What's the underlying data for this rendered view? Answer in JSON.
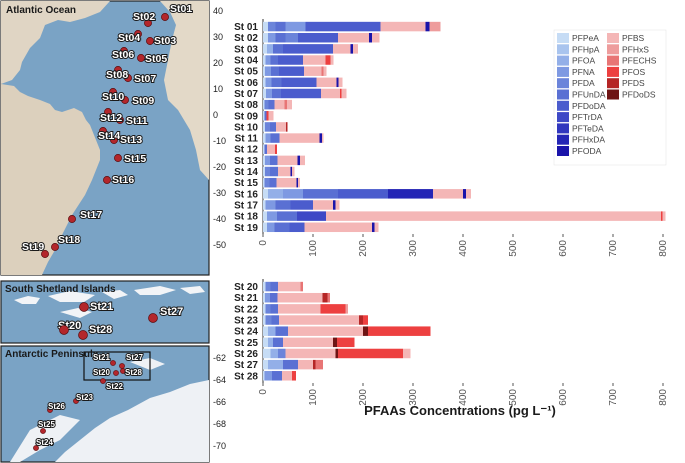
{
  "maps": {
    "atlantic": {
      "title": "Atlantic Ocean",
      "lat_labels": [
        "40",
        "30",
        "20",
        "10",
        "0",
        "-10",
        "-20",
        "-30",
        "-40",
        "-50"
      ],
      "stations": [
        "St01",
        "St02",
        "St03",
        "St04",
        "St05",
        "St06",
        "St07",
        "St08",
        "St09",
        "St10",
        "St11",
        "St12",
        "St13",
        "St14",
        "St15",
        "St16",
        "St17",
        "St18",
        "St19"
      ]
    },
    "shetland": {
      "title": "South Shetland Islands",
      "stations": [
        "St21",
        "St20",
        "St28",
        "St27"
      ]
    },
    "peninsula": {
      "title": "Antarctic Peninsula",
      "lat_labels": [
        "-62",
        "-64",
        "-66",
        "-68",
        "-70"
      ],
      "stations": [
        "St21",
        "St27",
        "St20",
        "St28",
        "St22",
        "St23",
        "St26",
        "St25",
        "St24"
      ]
    }
  },
  "chart_data": {
    "type": "bar",
    "orientation": "horizontal",
    "stacked": true,
    "xlabel": "PFAAs Concentrations (pg L⁻¹)",
    "xlim": [
      0,
      800
    ],
    "xticks": [
      "0",
      "100",
      "200",
      "300",
      "400",
      "500",
      "600",
      "700",
      "800"
    ],
    "legend": [
      {
        "name": "PFPeA",
        "color": "#c6dcf5"
      },
      {
        "name": "PFHpA",
        "color": "#a9c4ee"
      },
      {
        "name": "PFOA",
        "color": "#93afe8"
      },
      {
        "name": "PFNA",
        "color": "#7e99e2"
      },
      {
        "name": "PFDA",
        "color": "#6b84da"
      },
      {
        "name": "PFUnDA",
        "color": "#5a70d3"
      },
      {
        "name": "PFDoDA",
        "color": "#4b5ccd"
      },
      {
        "name": "PFTrDA",
        "color": "#3d48c6"
      },
      {
        "name": "PFTeDA",
        "color": "#3036be"
      },
      {
        "name": "PFHxDA",
        "color": "#2425b5"
      },
      {
        "name": "PFODA",
        "color": "#1a14aa"
      },
      {
        "name": "PFBS",
        "color": "#f4b6b6"
      },
      {
        "name": "PFHxS",
        "color": "#ee9c9c"
      },
      {
        "name": "PFECHS",
        "color": "#e87575"
      },
      {
        "name": "PFOS",
        "color": "#ed4040"
      },
      {
        "name": "PFDS",
        "color": "#b52626"
      },
      {
        "name": "PFDoDS",
        "color": "#6e1414"
      }
    ],
    "panels": [
      {
        "categories": [
          "St 01",
          "St 02",
          "St 03",
          "St 04",
          "St 05",
          "St 06",
          "St 07",
          "St 08",
          "St 09",
          "St 10",
          "St 11",
          "St 12",
          "St 13",
          "St 14",
          "St 15",
          "St 16",
          "St 17",
          "St 18",
          "St 19"
        ],
        "segments": [
          [
            [
              10,
              1
            ],
            [
              15,
              5
            ],
            [
              20,
              6
            ],
            [
              40,
              4
            ],
            [
              150,
              7
            ],
            [
              90,
              12
            ],
            [
              8,
              11
            ],
            [
              22,
              13
            ]
          ],
          [
            [
              10,
              1
            ],
            [
              15,
              4
            ],
            [
              20,
              6
            ],
            [
              25,
              5
            ],
            [
              80,
              7
            ],
            [
              62,
              12
            ],
            [
              6,
              11
            ],
            [
              15,
              12
            ]
          ],
          [
            [
              8,
              1
            ],
            [
              12,
              3
            ],
            [
              20,
              6
            ],
            [
              100,
              7
            ],
            [
              35,
              12
            ],
            [
              5,
              11
            ],
            [
              10,
              12
            ]
          ],
          [
            [
              5,
              1
            ],
            [
              10,
              4
            ],
            [
              15,
              6
            ],
            [
              50,
              7
            ],
            [
              45,
              12
            ],
            [
              10,
              15
            ],
            [
              6,
              12
            ]
          ],
          [
            [
              4,
              1
            ],
            [
              12,
              4
            ],
            [
              16,
              6
            ],
            [
              50,
              7
            ],
            [
              35,
              12
            ],
            [
              4,
              14
            ],
            [
              6,
              12
            ]
          ],
          [
            [
              5,
              1
            ],
            [
              12,
              4
            ],
            [
              20,
              6
            ],
            [
              70,
              7
            ],
            [
              40,
              12
            ],
            [
              4,
              11
            ],
            [
              8,
              12
            ]
          ],
          [
            [
              6,
              1
            ],
            [
              12,
              4
            ],
            [
              18,
              6
            ],
            [
              80,
              7
            ],
            [
              38,
              12
            ],
            [
              3,
              15
            ],
            [
              10,
              12
            ]
          ],
          [
            [
              3,
              1
            ],
            [
              8,
              5
            ],
            [
              12,
              6
            ],
            [
              20,
              12
            ],
            [
              5,
              14
            ],
            [
              10,
              12
            ]
          ],
          [
            [
              3,
              1
            ],
            [
              4,
              6
            ],
            [
              4,
              15
            ],
            [
              10,
              12
            ]
          ],
          [
            [
              4,
              1
            ],
            [
              10,
              5
            ],
            [
              12,
              6
            ],
            [
              20,
              12
            ],
            [
              3,
              16
            ]
          ],
          [
            [
              5,
              1
            ],
            [
              10,
              4
            ],
            [
              18,
              6
            ],
            [
              80,
              12
            ],
            [
              5,
              11
            ],
            [
              3,
              12
            ]
          ],
          [
            [
              3,
              1
            ],
            [
              5,
              6
            ],
            [
              16,
              12
            ],
            [
              4,
              15
            ]
          ],
          [
            [
              4,
              1
            ],
            [
              10,
              4
            ],
            [
              15,
              6
            ],
            [
              40,
              12
            ],
            [
              5,
              11
            ],
            [
              10,
              12
            ]
          ],
          [
            [
              4,
              1
            ],
            [
              10,
              5
            ],
            [
              16,
              6
            ],
            [
              25,
              12
            ],
            [
              3,
              11
            ],
            [
              5,
              12
            ]
          ],
          [
            [
              3,
              1
            ],
            [
              10,
              5
            ],
            [
              14,
              6
            ],
            [
              40,
              12
            ],
            [
              3,
              11
            ],
            [
              4,
              12
            ]
          ],
          [
            [
              10,
              1
            ],
            [
              30,
              3
            ],
            [
              40,
              4
            ],
            [
              70,
              6
            ],
            [
              100,
              7
            ],
            [
              90,
              10
            ],
            [
              60,
              12
            ],
            [
              6,
              11
            ],
            [
              10,
              12
            ]
          ],
          [
            [
              5,
              1
            ],
            [
              20,
              4
            ],
            [
              30,
              6
            ],
            [
              45,
              7
            ],
            [
              40,
              12
            ],
            [
              5,
              11
            ],
            [
              8,
              12
            ]
          ],
          [
            [
              8,
              1
            ],
            [
              20,
              4
            ],
            [
              40,
              6
            ],
            [
              58,
              8
            ],
            [
              670,
              12
            ],
            [
              3,
              15
            ],
            [
              6,
              12
            ]
          ],
          [
            [
              8,
              1
            ],
            [
              15,
              4
            ],
            [
              30,
              6
            ],
            [
              30,
              7
            ],
            [
              135,
              12
            ],
            [
              5,
              11
            ],
            [
              8,
              12
            ]
          ]
        ]
      },
      {
        "categories": [
          "St 20",
          "St 21",
          "St 22",
          "St 23",
          "St 24",
          "St 25",
          "St 26",
          "St 27",
          "St 28"
        ],
        "segments": [
          [
            [
              5,
              1
            ],
            [
              10,
              5
            ],
            [
              15,
              6
            ],
            [
              45,
              12
            ],
            [
              5,
              14
            ]
          ],
          [
            [
              4,
              1
            ],
            [
              10,
              4
            ],
            [
              15,
              6
            ],
            [
              90,
              12
            ],
            [
              10,
              16
            ],
            [
              5,
              14
            ]
          ],
          [
            [
              5,
              1
            ],
            [
              10,
              5
            ],
            [
              15,
              6
            ],
            [
              85,
              12
            ],
            [
              50,
              15
            ],
            [
              5,
              13
            ]
          ],
          [
            [
              5,
              1
            ],
            [
              12,
              5
            ],
            [
              15,
              6
            ],
            [
              160,
              12
            ],
            [
              8,
              16
            ],
            [
              10,
              15
            ]
          ],
          [
            [
              10,
              1
            ],
            [
              15,
              3
            ],
            [
              25,
              6
            ],
            [
              150,
              12
            ],
            [
              10,
              17
            ],
            [
              125,
              15
            ]
          ],
          [
            [
              10,
              1
            ],
            [
              10,
              3
            ],
            [
              20,
              6
            ],
            [
              100,
              12
            ],
            [
              8,
              17
            ],
            [
              35,
              15
            ]
          ],
          [
            [
              15,
              1
            ],
            [
              15,
              3
            ],
            [
              15,
              5
            ],
            [
              100,
              12
            ],
            [
              5,
              17
            ],
            [
              130,
              15
            ],
            [
              15,
              12
            ]
          ],
          [
            [
              10,
              1
            ],
            [
              30,
              3
            ],
            [
              30,
              6
            ],
            [
              30,
              12
            ],
            [
              5,
              16
            ],
            [
              15,
              14
            ]
          ],
          [
            [
              3,
              1
            ],
            [
              15,
              4
            ],
            [
              20,
              6
            ],
            [
              20,
              12
            ],
            [
              8,
              15
            ]
          ]
        ]
      }
    ]
  }
}
